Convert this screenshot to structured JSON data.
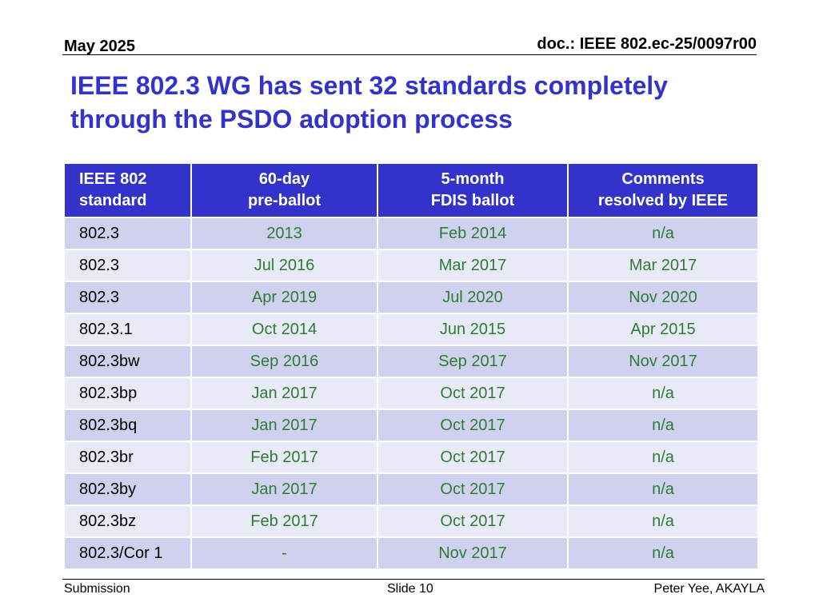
{
  "header": {
    "date": "May 2025",
    "doc_id": "doc.: IEEE 802.ec-25/0097r00"
  },
  "title": {
    "line1": "IEEE 802.3 WG has sent 32 standards completely",
    "line2": "through the PSDO adoption process"
  },
  "table": {
    "headers": [
      {
        "line1": "IEEE 802",
        "line2": "standard"
      },
      {
        "line1": "60-day",
        "line2": "pre-ballot"
      },
      {
        "line1": "5-month",
        "line2": "FDIS ballot"
      },
      {
        "line1": "Comments",
        "line2": "resolved by IEEE"
      }
    ],
    "rows": [
      [
        "802.3",
        "2013",
        "Feb 2014",
        "n/a"
      ],
      [
        "802.3",
        "Jul 2016",
        "Mar 2017",
        "Mar 2017"
      ],
      [
        "802.3",
        "Apr 2019",
        "Jul 2020",
        "Nov 2020"
      ],
      [
        "802.3.1",
        "Oct 2014",
        "Jun 2015",
        "Apr 2015"
      ],
      [
        "802.3bw",
        "Sep 2016",
        "Sep 2017",
        "Nov 2017"
      ],
      [
        "802.3bp",
        "Jan 2017",
        "Oct 2017",
        "n/a"
      ],
      [
        "802.3bq",
        "Jan 2017",
        "Oct 2017",
        "n/a"
      ],
      [
        "802.3br",
        "Feb 2017",
        "Oct 2017",
        "n/a"
      ],
      [
        "802.3by",
        "Jan 2017",
        "Oct 2017",
        "n/a"
      ],
      [
        "802.3bz",
        "Feb 2017",
        "Oct 2017",
        "n/a"
      ],
      [
        "802.3/Cor 1",
        "-",
        "Nov 2017",
        "n/a"
      ]
    ]
  },
  "footer": {
    "left": "Submission",
    "center": "Slide 10",
    "right": "Peter Yee, AKAYLA"
  },
  "colors": {
    "title": "#3333cc",
    "header_bg": "#3333cc",
    "row_odd": "#cfd1ef",
    "row_even": "#e9eaf7",
    "value_text": "#2e7d32"
  }
}
